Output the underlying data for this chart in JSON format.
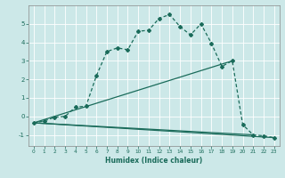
{
  "xlabel": "Humidex (Indice chaleur)",
  "background_color": "#cce8e8",
  "line_color": "#1a6b5a",
  "xlim": [
    -0.5,
    23.5
  ],
  "ylim": [
    -1.6,
    6.0
  ],
  "yticks": [
    -1,
    0,
    1,
    2,
    3,
    4,
    5
  ],
  "xticks": [
    0,
    1,
    2,
    3,
    4,
    5,
    6,
    7,
    8,
    9,
    10,
    11,
    12,
    13,
    14,
    15,
    16,
    17,
    18,
    19,
    20,
    21,
    22,
    23
  ],
  "series1_x": [
    0,
    1,
    2,
    3,
    4,
    5,
    6,
    7,
    8,
    9,
    10,
    11,
    12,
    13,
    14,
    15,
    16,
    17,
    18,
    19,
    20,
    21,
    22,
    23
  ],
  "series1_y": [
    -0.35,
    -0.25,
    -0.05,
    0.0,
    0.5,
    0.55,
    2.2,
    3.5,
    3.7,
    3.6,
    4.6,
    4.65,
    5.3,
    5.5,
    4.85,
    4.4,
    5.0,
    3.95,
    2.7,
    3.0,
    -0.45,
    -1.0,
    -1.05,
    -1.15
  ],
  "series2_x": [
    0,
    23
  ],
  "series2_y": [
    -0.35,
    -1.15
  ],
  "series3_x": [
    0,
    21
  ],
  "series3_y": [
    -0.35,
    -1.0
  ],
  "series4_x": [
    0,
    19
  ],
  "series4_y": [
    -0.35,
    3.0
  ]
}
